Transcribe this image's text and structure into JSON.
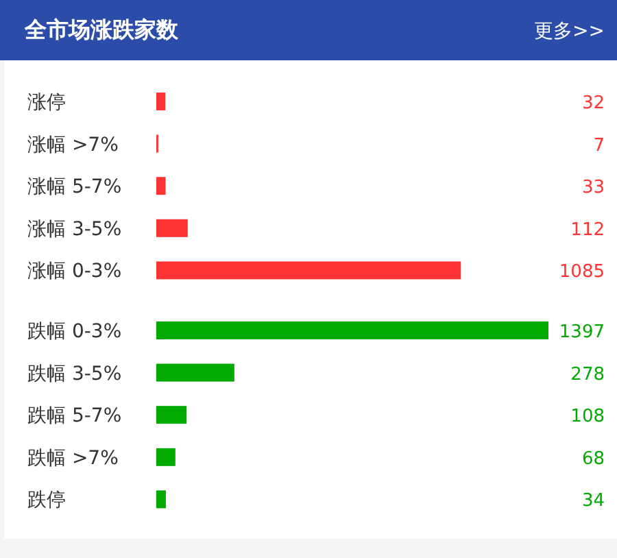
{
  "chart_data": {
    "type": "bar",
    "orientation": "horizontal",
    "title": "全市场涨跌家数",
    "annotations": [
      "更多>>"
    ],
    "categories": [
      "涨停",
      "涨幅 >7%",
      "涨幅 5-7%",
      "涨幅 3-5%",
      "涨幅 0-3%",
      "跌幅 0-3%",
      "跌幅 3-5%",
      "跌幅 5-7%",
      "跌幅 >7%",
      "跌停"
    ],
    "values": [
      32,
      7,
      33,
      112,
      1085,
      1397,
      278,
      108,
      68,
      34
    ],
    "colors": [
      "#ff3333",
      "#ff3333",
      "#ff3333",
      "#ff3333",
      "#ff3333",
      "#00aa00",
      "#00aa00",
      "#00aa00",
      "#00aa00",
      "#00aa00"
    ],
    "data_labels": true
  }
}
